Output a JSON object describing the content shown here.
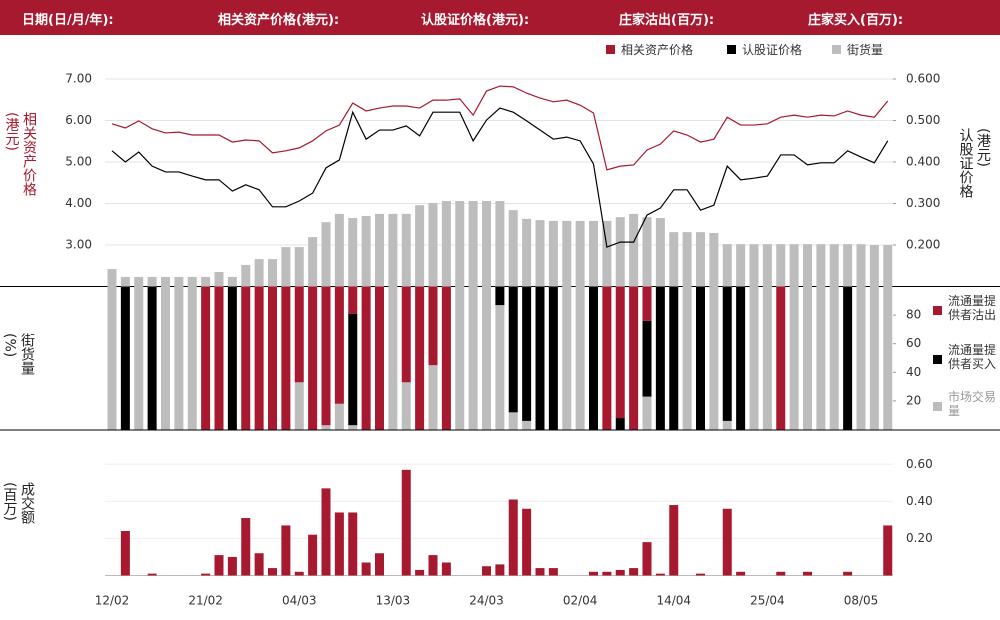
{
  "header": {
    "labels": [
      "日期(日/月/年):",
      "相关资产价格(港元):",
      "认股证价格(港元):",
      "庄家沽出(百万):",
      "庄家买入(百万):"
    ]
  },
  "chart_data": [
    {
      "type": "line",
      "y_label": "相关资产价格(港元)",
      "y2_label": "认股证价格(港元)",
      "ylim": [
        2,
        7
      ],
      "yticks": [
        {
          "value": 7,
          "label": "7.00"
        },
        {
          "value": 6,
          "label": "6.00"
        },
        {
          "value": 5,
          "label": "5.00"
        },
        {
          "value": 4,
          "label": "4.00"
        },
        {
          "value": 3,
          "label": "3.00"
        }
      ],
      "y2lim": [
        0.1,
        0.6
      ],
      "y2ticks": [
        {
          "value": 0.6,
          "label": "0.600"
        },
        {
          "value": 0.5,
          "label": "0.500"
        },
        {
          "value": 0.4,
          "label": "0.400"
        },
        {
          "value": 0.3,
          "label": "0.300"
        },
        {
          "value": 0.2,
          "label": "0.200"
        }
      ],
      "grid": true,
      "series": [
        {
          "name": "相关资产价格",
          "color": "#a6192e",
          "values": [
            5.92,
            5.82,
            5.99,
            5.8,
            5.7,
            5.72,
            5.65,
            5.65,
            5.65,
            5.48,
            5.53,
            5.51,
            5.22,
            5.27,
            5.34,
            5.51,
            5.75,
            5.89,
            6.42,
            6.23,
            6.3,
            6.35,
            6.35,
            6.3,
            6.49,
            6.49,
            6.52,
            6.13,
            6.71,
            6.83,
            6.81,
            6.66,
            6.54,
            6.45,
            6.49,
            6.37,
            6.18,
            4.81,
            4.9,
            4.93,
            5.29,
            5.43,
            5.75,
            5.65,
            5.48,
            5.55,
            6.08,
            5.89,
            5.89,
            5.92,
            6.08,
            6.13,
            6.08,
            6.13,
            6.11,
            6.23,
            6.13,
            6.08,
            6.47
          ]
        },
        {
          "name": "认股证价格",
          "color": "#000000",
          "axis": "y2",
          "values": [
            0.427,
            0.4,
            0.424,
            0.39,
            0.376,
            0.376,
            0.366,
            0.357,
            0.357,
            0.33,
            0.345,
            0.333,
            0.292,
            0.292,
            0.306,
            0.325,
            0.386,
            0.405,
            0.52,
            0.455,
            0.477,
            0.477,
            0.487,
            0.463,
            0.52,
            0.52,
            0.52,
            0.451,
            0.501,
            0.53,
            0.52,
            0.499,
            0.477,
            0.455,
            0.46,
            0.451,
            0.395,
            0.195,
            0.207,
            0.207,
            0.272,
            0.289,
            0.333,
            0.333,
            0.284,
            0.296,
            0.39,
            0.357,
            0.361,
            0.366,
            0.417,
            0.417,
            0.393,
            0.398,
            0.398,
            0.427,
            0.412,
            0.398,
            0.451
          ]
        },
        {
          "name": "街货量",
          "color": "#bdbdbd",
          "type": "bar",
          "values": [
            2.42,
            2.23,
            2.23,
            2.23,
            2.23,
            2.23,
            2.23,
            2.23,
            2.35,
            2.23,
            2.52,
            2.66,
            2.66,
            2.95,
            2.95,
            3.19,
            3.55,
            3.75,
            3.65,
            3.7,
            3.75,
            3.75,
            3.75,
            3.96,
            4.01,
            4.06,
            4.06,
            4.06,
            4.06,
            4.06,
            3.84,
            3.63,
            3.6,
            3.58,
            3.58,
            3.58,
            3.58,
            3.58,
            3.67,
            3.75,
            3.67,
            3.65,
            3.31,
            3.31,
            3.31,
            3.29,
            3.02,
            3.02,
            3.02,
            3.02,
            3.02,
            3.02,
            3.02,
            3.02,
            3.02,
            3.02,
            3.02,
            3.0,
            3.0
          ]
        }
      ]
    },
    {
      "type": "stacked_bar",
      "y_label": "街货量(%)",
      "ylim": [
        0,
        100
      ],
      "yticks": [
        20,
        40,
        60,
        80
      ],
      "series": [
        {
          "name": "流通量提供者沽出",
          "color": "#a6192e",
          "values": [
            0,
            0,
            0,
            0,
            0,
            0,
            0,
            100,
            100,
            0,
            100,
            100,
            100,
            100,
            67,
            100,
            97,
            82,
            19,
            100,
            100,
            0,
            67,
            100,
            55,
            100,
            0,
            0,
            0,
            0,
            0,
            0,
            0,
            0,
            0,
            0,
            0,
            100,
            92,
            100,
            24,
            0,
            0,
            0,
            0,
            0,
            0,
            0,
            0,
            0,
            100,
            0,
            0,
            0,
            0,
            0,
            0,
            0,
            0
          ]
        },
        {
          "name": "流通量提供者买入",
          "color": "#000000",
          "values": [
            0,
            100,
            0,
            100,
            0,
            0,
            0,
            0,
            0,
            100,
            0,
            0,
            0,
            0,
            0,
            0,
            0,
            0,
            78,
            0,
            0,
            0,
            0,
            0,
            0,
            0,
            0,
            0,
            0,
            13,
            88,
            94,
            100,
            100,
            0,
            0,
            100,
            0,
            8,
            0,
            53,
            100,
            100,
            0,
            100,
            0,
            94,
            100,
            0,
            0,
            0,
            0,
            0,
            0,
            0,
            100,
            0,
            0,
            0
          ]
        },
        {
          "name": "市场交易量",
          "color": "#bdbdbd",
          "values": [
            100,
            0,
            100,
            0,
            100,
            100,
            100,
            0,
            0,
            0,
            0,
            0,
            0,
            0,
            33,
            0,
            3,
            18,
            3,
            0,
            0,
            100,
            33,
            0,
            45,
            0,
            100,
            100,
            100,
            87,
            12,
            6,
            0,
            0,
            100,
            100,
            0,
            0,
            0,
            0,
            23,
            0,
            0,
            100,
            0,
            100,
            6,
            0,
            100,
            100,
            0,
            100,
            100,
            100,
            100,
            0,
            100,
            100,
            100
          ]
        }
      ]
    },
    {
      "type": "bar",
      "y_label": "成交额(百万)",
      "color": "#a6192e",
      "ylim": [
        0,
        0.65
      ],
      "yticks": [
        {
          "value": 0.6,
          "label": "0.60"
        },
        {
          "value": 0.4,
          "label": "0.40"
        },
        {
          "value": 0.2,
          "label": "0.20"
        }
      ],
      "categories": [
        "12/02",
        null,
        null,
        null,
        null,
        null,
        null,
        "21/02",
        null,
        null,
        null,
        null,
        null,
        null,
        "04/03",
        null,
        null,
        null,
        null,
        null,
        null,
        "13/03",
        null,
        null,
        null,
        null,
        null,
        null,
        "24/03",
        null,
        null,
        null,
        null,
        null,
        null,
        "02/04",
        null,
        null,
        null,
        null,
        null,
        null,
        "14/04",
        null,
        null,
        null,
        null,
        null,
        null,
        "25/04",
        null,
        null,
        null,
        null,
        null,
        null,
        "08/05",
        null,
        null
      ],
      "values": [
        0,
        0.24,
        0,
        0.01,
        0,
        0,
        0,
        0.01,
        0.11,
        0.1,
        0.31,
        0.12,
        0.04,
        0.27,
        0.02,
        0.22,
        0.47,
        0.34,
        0.34,
        0.07,
        0.12,
        0,
        0.57,
        0.03,
        0.11,
        0.07,
        0,
        0,
        0.05,
        0.06,
        0.41,
        0.36,
        0.04,
        0.04,
        0,
        0,
        0.02,
        0.02,
        0.03,
        0.04,
        0.18,
        0.01,
        0.38,
        0,
        0.01,
        0,
        0.36,
        0.02,
        0,
        0,
        0.02,
        0,
        0.02,
        0,
        0,
        0.02,
        0,
        0,
        0.27
      ]
    }
  ]
}
